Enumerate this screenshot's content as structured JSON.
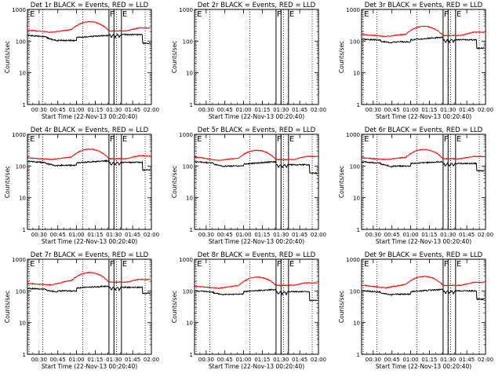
{
  "chart_data": {
    "type": "line",
    "x_ticks": [
      "00:30",
      "00:45",
      "01:00",
      "01:15",
      "01:30",
      "01:45",
      "02:00"
    ],
    "xlim_minutes_after_midnight": [
      20.67,
      120
    ],
    "x_tick_minutes": [
      30,
      45,
      60,
      75,
      90,
      105,
      120
    ],
    "ylim": [
      1,
      1000
    ],
    "y_scale": "log",
    "y_ticks": [
      "1",
      "10",
      "100",
      "1000"
    ],
    "xlabel": "Start Time (22-Nov-13 00:20:40)",
    "ylabel": "Counts/sec",
    "colors": {
      "events": "#000000",
      "lld": "#ff0000"
    },
    "markers": {
      "dotted_minutes": [
        22,
        33,
        65,
        92,
        115
      ],
      "solid_minutes": [
        86,
        90,
        96
      ],
      "labels": [
        {
          "text": "E",
          "minute": 22
        },
        {
          "text": "F",
          "minute": 86
        },
        {
          "text": "E",
          "minute": 96
        }
      ]
    },
    "panels": [
      {
        "title": "Det 1r BLACK = Events, RED = LLD",
        "has_data": true,
        "events": {
          "base": 150,
          "dip": 100,
          "mid": 130,
          "pre": 150,
          "post": 160,
          "end": 85
        },
        "lld": {
          "base": 220,
          "dip": 190,
          "peak": 420,
          "post": 210,
          "end": 260
        }
      },
      {
        "title": "Det 2r BLACK = Events, RED = LLD",
        "has_data": false
      },
      {
        "title": "Det 3r BLACK = Events, RED = LLD",
        "has_data": true,
        "events": {
          "base": 115,
          "dip": 90,
          "mid": 110,
          "pre": 130,
          "post": 110,
          "end": 60
        },
        "lld": {
          "base": 160,
          "dip": 140,
          "peak": 300,
          "post": 150,
          "end": 190
        }
      },
      {
        "title": "Det 4r BLACK = Events, RED = LLD",
        "has_data": true,
        "events": {
          "base": 140,
          "dip": 100,
          "mid": 125,
          "pre": 145,
          "post": 130,
          "end": 75
        },
        "lld": {
          "base": 180,
          "dip": 160,
          "peak": 350,
          "post": 170,
          "end": 210
        }
      },
      {
        "title": "Det 5r BLACK = Events, RED = LLD",
        "has_data": true,
        "events": {
          "base": 135,
          "dip": 95,
          "mid": 115,
          "pre": 135,
          "post": 110,
          "end": 60
        },
        "lld": {
          "base": 190,
          "dip": 150,
          "peak": 320,
          "post": 160,
          "end": 200
        }
      },
      {
        "title": "Det 6r BLACK = Events, RED = LLD",
        "has_data": true,
        "events": {
          "base": 135,
          "dip": 95,
          "mid": 120,
          "pre": 135,
          "post": 120,
          "end": 70
        },
        "lld": {
          "base": 180,
          "dip": 160,
          "peak": 340,
          "post": 170,
          "end": 200
        }
      },
      {
        "title": "Det 7r BLACK = Events, RED = LLD",
        "has_data": true,
        "events": {
          "base": 120,
          "dip": 95,
          "mid": 125,
          "pre": 140,
          "post": 130,
          "end": 85
        },
        "lld": {
          "base": 170,
          "dip": 155,
          "peak": 390,
          "post": 190,
          "end": 230
        }
      },
      {
        "title": "Det 8r BLACK = Events, RED = LLD",
        "has_data": true,
        "events": {
          "base": 100,
          "dip": 75,
          "mid": 95,
          "pre": 110,
          "post": 95,
          "end": 50
        },
        "lld": {
          "base": 140,
          "dip": 120,
          "peak": 270,
          "post": 150,
          "end": 180
        }
      },
      {
        "title": "Det 9r BLACK = Events, RED = LLD",
        "has_data": true,
        "events": {
          "base": 100,
          "dip": 75,
          "mid": 95,
          "pre": 110,
          "post": 100,
          "end": 55
        },
        "lld": {
          "base": 150,
          "dip": 125,
          "peak": 290,
          "post": 150,
          "end": 185
        }
      }
    ]
  }
}
